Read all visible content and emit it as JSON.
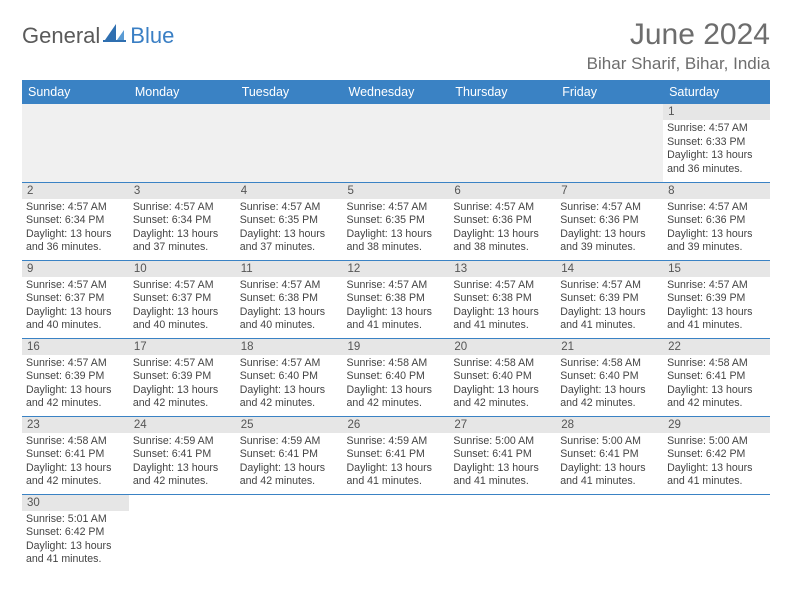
{
  "logo": {
    "text1": "General",
    "text2": "Blue"
  },
  "title": "June 2024",
  "location": "Bihar Sharif, Bihar, India",
  "colors": {
    "header_bg": "#3a82c4",
    "header_text": "#ffffff",
    "daynum_bg": "#e6e6e6",
    "row_divider": "#3a82c4",
    "title_color": "#6d6d6d"
  },
  "weekdays": [
    "Sunday",
    "Monday",
    "Tuesday",
    "Wednesday",
    "Thursday",
    "Friday",
    "Saturday"
  ],
  "weeks": [
    [
      null,
      null,
      null,
      null,
      null,
      null,
      {
        "n": "1",
        "sunrise": "4:57 AM",
        "sunset": "6:33 PM",
        "dh": "13",
        "dm": "36"
      }
    ],
    [
      {
        "n": "2",
        "sunrise": "4:57 AM",
        "sunset": "6:34 PM",
        "dh": "13",
        "dm": "36"
      },
      {
        "n": "3",
        "sunrise": "4:57 AM",
        "sunset": "6:34 PM",
        "dh": "13",
        "dm": "37"
      },
      {
        "n": "4",
        "sunrise": "4:57 AM",
        "sunset": "6:35 PM",
        "dh": "13",
        "dm": "37"
      },
      {
        "n": "5",
        "sunrise": "4:57 AM",
        "sunset": "6:35 PM",
        "dh": "13",
        "dm": "38"
      },
      {
        "n": "6",
        "sunrise": "4:57 AM",
        "sunset": "6:36 PM",
        "dh": "13",
        "dm": "38"
      },
      {
        "n": "7",
        "sunrise": "4:57 AM",
        "sunset": "6:36 PM",
        "dh": "13",
        "dm": "39"
      },
      {
        "n": "8",
        "sunrise": "4:57 AM",
        "sunset": "6:36 PM",
        "dh": "13",
        "dm": "39"
      }
    ],
    [
      {
        "n": "9",
        "sunrise": "4:57 AM",
        "sunset": "6:37 PM",
        "dh": "13",
        "dm": "40"
      },
      {
        "n": "10",
        "sunrise": "4:57 AM",
        "sunset": "6:37 PM",
        "dh": "13",
        "dm": "40"
      },
      {
        "n": "11",
        "sunrise": "4:57 AM",
        "sunset": "6:38 PM",
        "dh": "13",
        "dm": "40"
      },
      {
        "n": "12",
        "sunrise": "4:57 AM",
        "sunset": "6:38 PM",
        "dh": "13",
        "dm": "41"
      },
      {
        "n": "13",
        "sunrise": "4:57 AM",
        "sunset": "6:38 PM",
        "dh": "13",
        "dm": "41"
      },
      {
        "n": "14",
        "sunrise": "4:57 AM",
        "sunset": "6:39 PM",
        "dh": "13",
        "dm": "41"
      },
      {
        "n": "15",
        "sunrise": "4:57 AM",
        "sunset": "6:39 PM",
        "dh": "13",
        "dm": "41"
      }
    ],
    [
      {
        "n": "16",
        "sunrise": "4:57 AM",
        "sunset": "6:39 PM",
        "dh": "13",
        "dm": "42"
      },
      {
        "n": "17",
        "sunrise": "4:57 AM",
        "sunset": "6:39 PM",
        "dh": "13",
        "dm": "42"
      },
      {
        "n": "18",
        "sunrise": "4:57 AM",
        "sunset": "6:40 PM",
        "dh": "13",
        "dm": "42"
      },
      {
        "n": "19",
        "sunrise": "4:58 AM",
        "sunset": "6:40 PM",
        "dh": "13",
        "dm": "42"
      },
      {
        "n": "20",
        "sunrise": "4:58 AM",
        "sunset": "6:40 PM",
        "dh": "13",
        "dm": "42"
      },
      {
        "n": "21",
        "sunrise": "4:58 AM",
        "sunset": "6:40 PM",
        "dh": "13",
        "dm": "42"
      },
      {
        "n": "22",
        "sunrise": "4:58 AM",
        "sunset": "6:41 PM",
        "dh": "13",
        "dm": "42"
      }
    ],
    [
      {
        "n": "23",
        "sunrise": "4:58 AM",
        "sunset": "6:41 PM",
        "dh": "13",
        "dm": "42"
      },
      {
        "n": "24",
        "sunrise": "4:59 AM",
        "sunset": "6:41 PM",
        "dh": "13",
        "dm": "42"
      },
      {
        "n": "25",
        "sunrise": "4:59 AM",
        "sunset": "6:41 PM",
        "dh": "13",
        "dm": "42"
      },
      {
        "n": "26",
        "sunrise": "4:59 AM",
        "sunset": "6:41 PM",
        "dh": "13",
        "dm": "41"
      },
      {
        "n": "27",
        "sunrise": "5:00 AM",
        "sunset": "6:41 PM",
        "dh": "13",
        "dm": "41"
      },
      {
        "n": "28",
        "sunrise": "5:00 AM",
        "sunset": "6:41 PM",
        "dh": "13",
        "dm": "41"
      },
      {
        "n": "29",
        "sunrise": "5:00 AM",
        "sunset": "6:42 PM",
        "dh": "13",
        "dm": "41"
      }
    ],
    [
      {
        "n": "30",
        "sunrise": "5:01 AM",
        "sunset": "6:42 PM",
        "dh": "13",
        "dm": "41"
      },
      null,
      null,
      null,
      null,
      null,
      null
    ]
  ],
  "labels": {
    "sunrise": "Sunrise:",
    "sunset": "Sunset:",
    "daylight_prefix": "Daylight:",
    "hours_word": "hours",
    "and_word": "and",
    "minutes_word": "minutes."
  }
}
